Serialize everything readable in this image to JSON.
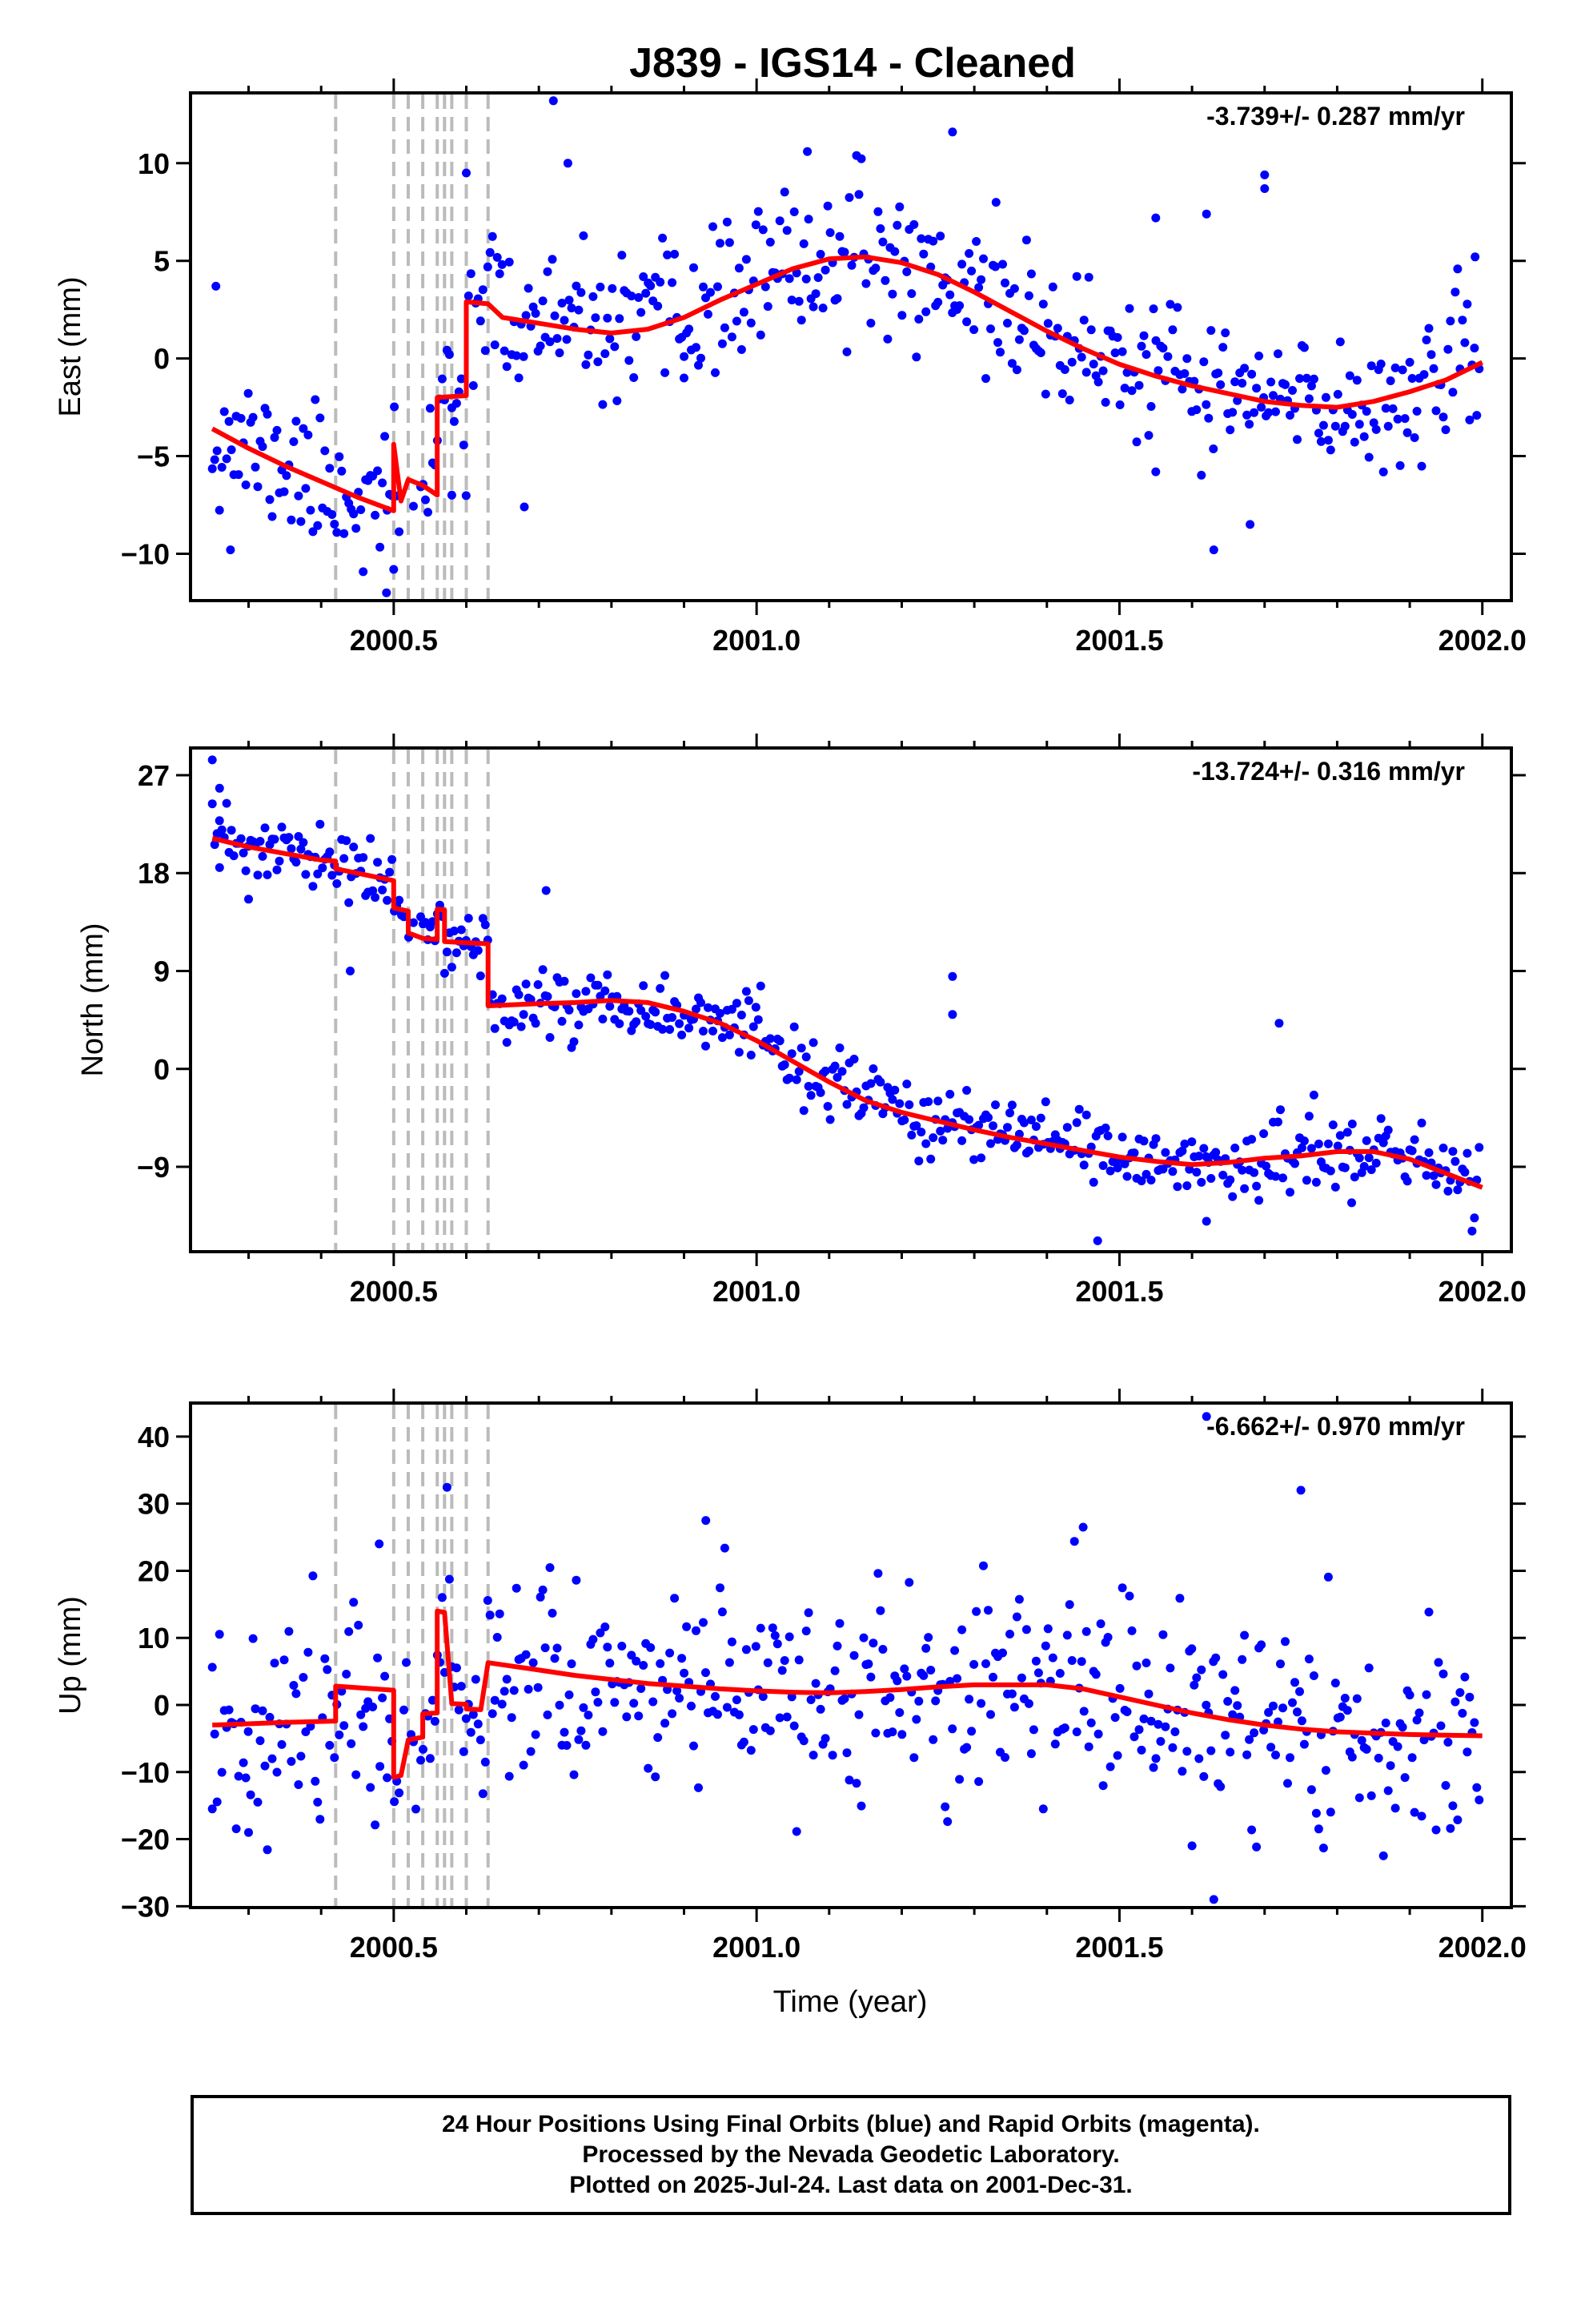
{
  "chart_data": {
    "type": "scatter",
    "title": "J839  - IGS14 - Cleaned",
    "xlabel": "Time (year)",
    "xlim": [
      2000.22,
      2002.04
    ],
    "xticks": [
      2000.5,
      2001.0,
      2001.5,
      2002.0
    ],
    "xtick_labels": [
      "2000.5",
      "2001.0",
      "2001.5",
      "2002.0"
    ],
    "breaks": [
      2000.42,
      2000.5,
      2000.52,
      2000.54,
      2000.56,
      2000.57,
      2000.58,
      2000.6,
      2000.63
    ],
    "colors": {
      "points": "#0000ff",
      "model": "#ff0000",
      "breaks": "#bbbbbb",
      "rapid": "#ff00ff"
    },
    "panels": [
      {
        "name": "east",
        "ylabel": "East (mm)",
        "rate": "-3.739+/- 0.287 mm/yr",
        "ylim": [
          -12.4,
          13.6
        ],
        "yticks": [
          10,
          5,
          0,
          -5,
          -10
        ],
        "ytick_labels": [
          "10",
          "5",
          "0",
          "−5",
          "−10"
        ],
        "scatter_sd": 1.8,
        "scatter_seed": 11,
        "model": [
          [
            2000.25,
            -3.6
          ],
          [
            2000.3,
            -4.6
          ],
          [
            2000.35,
            -5.5
          ],
          [
            2000.4,
            -6.3
          ],
          [
            2000.45,
            -7.1
          ],
          [
            2000.5,
            -7.8
          ],
          [
            2000.5,
            -4.4
          ],
          [
            2000.51,
            -7.3
          ],
          [
            2000.52,
            -6.2
          ],
          [
            2000.54,
            -6.5
          ],
          [
            2000.56,
            -7.0
          ],
          [
            2000.56,
            -2.0
          ],
          [
            2000.6,
            -1.9
          ],
          [
            2000.6,
            2.9
          ],
          [
            2000.63,
            2.8
          ],
          [
            2000.65,
            2.1
          ],
          [
            2000.7,
            1.8
          ],
          [
            2000.75,
            1.5
          ],
          [
            2000.8,
            1.3
          ],
          [
            2000.85,
            1.5
          ],
          [
            2000.9,
            2.1
          ],
          [
            2000.95,
            3.0
          ],
          [
            2001.0,
            3.8
          ],
          [
            2001.05,
            4.6
          ],
          [
            2001.1,
            5.1
          ],
          [
            2001.15,
            5.2
          ],
          [
            2001.2,
            4.9
          ],
          [
            2001.25,
            4.3
          ],
          [
            2001.3,
            3.4
          ],
          [
            2001.35,
            2.4
          ],
          [
            2001.4,
            1.4
          ],
          [
            2001.45,
            0.5
          ],
          [
            2001.5,
            -0.3
          ],
          [
            2001.55,
            -0.9
          ],
          [
            2001.6,
            -1.4
          ],
          [
            2001.65,
            -1.8
          ],
          [
            2001.7,
            -2.2
          ],
          [
            2001.75,
            -2.4
          ],
          [
            2001.8,
            -2.5
          ],
          [
            2001.85,
            -2.2
          ],
          [
            2001.9,
            -1.7
          ],
          [
            2001.95,
            -1.1
          ],
          [
            2002.0,
            -0.2
          ]
        ],
        "outliers": [
          [
            2000.255,
            3.7
          ],
          [
            2000.275,
            -9.8
          ],
          [
            2000.72,
            13.2
          ],
          [
            2000.74,
            10
          ],
          [
            2000.9,
            -1
          ],
          [
            2001.07,
            10.6
          ],
          [
            2001.27,
            11.6
          ],
          [
            2001.33,
            8
          ],
          [
            2001.62,
            7.4
          ],
          [
            2001.63,
            -9.8
          ],
          [
            2001.68,
            -8.5
          ],
          [
            2001.7,
            9.4
          ],
          [
            2001.7,
            8.7
          ],
          [
            2001.99,
            5.2
          ],
          [
            2000.49,
            -12
          ],
          [
            2000.5,
            -10.8
          ],
          [
            2000.6,
            9.5
          ],
          [
            2000.58,
            -7
          ],
          [
            2000.68,
            -7.6
          ],
          [
            2001.55,
            7.2
          ],
          [
            2001.55,
            -5.8
          ]
        ]
      },
      {
        "name": "north",
        "ylabel": "North (mm)",
        "rate": "-13.724+/- 0.316 mm/yr",
        "ylim": [
          -16.8,
          29.5
        ],
        "yticks": [
          27,
          18,
          9,
          0,
          -9
        ],
        "ytick_labels": [
          "27",
          "18",
          "9",
          "0",
          "−9"
        ],
        "scatter_sd": 1.6,
        "scatter_seed": 23,
        "model": [
          [
            2000.25,
            21.2
          ],
          [
            2000.3,
            20.4
          ],
          [
            2000.35,
            19.8
          ],
          [
            2000.4,
            19.2
          ],
          [
            2000.42,
            19.1
          ],
          [
            2000.42,
            18.4
          ],
          [
            2000.5,
            17.3
          ],
          [
            2000.5,
            14.8
          ],
          [
            2000.52,
            14.5
          ],
          [
            2000.52,
            12.5
          ],
          [
            2000.54,
            12.0
          ],
          [
            2000.56,
            11.9
          ],
          [
            2000.56,
            14.7
          ],
          [
            2000.57,
            14.6
          ],
          [
            2000.57,
            11.7
          ],
          [
            2000.6,
            11.6
          ],
          [
            2000.63,
            11.5
          ],
          [
            2000.63,
            5.8
          ],
          [
            2000.7,
            6.0
          ],
          [
            2000.75,
            6.1
          ],
          [
            2000.8,
            6.3
          ],
          [
            2000.85,
            6.1
          ],
          [
            2000.9,
            5.3
          ],
          [
            2000.95,
            4.2
          ],
          [
            2001.0,
            2.6
          ],
          [
            2001.05,
            0.7
          ],
          [
            2001.1,
            -1.2
          ],
          [
            2001.15,
            -2.9
          ],
          [
            2001.2,
            -4.0
          ],
          [
            2001.25,
            -4.8
          ],
          [
            2001.3,
            -5.6
          ],
          [
            2001.35,
            -6.3
          ],
          [
            2001.4,
            -6.9
          ],
          [
            2001.45,
            -7.5
          ],
          [
            2001.5,
            -8.1
          ],
          [
            2001.55,
            -8.5
          ],
          [
            2001.6,
            -8.8
          ],
          [
            2001.65,
            -8.6
          ],
          [
            2001.7,
            -8.2
          ],
          [
            2001.75,
            -8.0
          ],
          [
            2001.8,
            -7.6
          ],
          [
            2001.85,
            -7.6
          ],
          [
            2001.9,
            -8.3
          ],
          [
            2001.95,
            -9.6
          ],
          [
            2002.0,
            -10.9
          ]
        ],
        "outliers": [
          [
            2000.25,
            28.4
          ],
          [
            2000.26,
            25.8
          ],
          [
            2000.44,
            9
          ],
          [
            2000.71,
            16.4
          ],
          [
            2001.27,
            8.5
          ],
          [
            2001.27,
            5
          ],
          [
            2001.47,
            -15.8
          ],
          [
            2001.62,
            -14
          ],
          [
            2001.72,
            4.2
          ],
          [
            2001.82,
            -12.3
          ],
          [
            2000.3,
            15.6
          ],
          [
            2000.26,
            18.5
          ]
        ]
      },
      {
        "name": "up",
        "ylabel": "Up (mm)",
        "rate": "-6.662+/- 0.970 mm/yr",
        "ylim": [
          -30.2,
          45.0
        ],
        "yticks": [
          40,
          30,
          20,
          10,
          0,
          -10,
          -20,
          -30
        ],
        "ytick_labels": [
          "40",
          "30",
          "20",
          "10",
          "0",
          "−10",
          "−20",
          "−30"
        ],
        "scatter_sd": 7.5,
        "scatter_seed": 37,
        "model": [
          [
            2000.25,
            -3.0
          ],
          [
            2000.3,
            -2.8
          ],
          [
            2000.35,
            -2.6
          ],
          [
            2000.42,
            -2.4
          ],
          [
            2000.42,
            2.8
          ],
          [
            2000.5,
            2.2
          ],
          [
            2000.5,
            -10.8
          ],
          [
            2000.51,
            -10.5
          ],
          [
            2000.52,
            -5.2
          ],
          [
            2000.54,
            -4.8
          ],
          [
            2000.54,
            -1.3
          ],
          [
            2000.56,
            -1.2
          ],
          [
            2000.56,
            14.0
          ],
          [
            2000.57,
            13.8
          ],
          [
            2000.58,
            0.2
          ],
          [
            2000.6,
            0.1
          ],
          [
            2000.6,
            -0.6
          ],
          [
            2000.62,
            -0.7
          ],
          [
            2000.63,
            6.3
          ],
          [
            2000.7,
            5.2
          ],
          [
            2000.75,
            4.4
          ],
          [
            2000.8,
            3.8
          ],
          [
            2000.85,
            3.2
          ],
          [
            2000.9,
            2.8
          ],
          [
            2000.95,
            2.4
          ],
          [
            2001.0,
            2.1
          ],
          [
            2001.05,
            1.9
          ],
          [
            2001.1,
            1.8
          ],
          [
            2001.15,
            2.0
          ],
          [
            2001.2,
            2.3
          ],
          [
            2001.25,
            2.7
          ],
          [
            2001.3,
            3.0
          ],
          [
            2001.35,
            3.0
          ],
          [
            2001.4,
            3.0
          ],
          [
            2001.45,
            2.4
          ],
          [
            2001.5,
            1.2
          ],
          [
            2001.55,
            0.0
          ],
          [
            2001.6,
            -1.2
          ],
          [
            2001.65,
            -2.2
          ],
          [
            2001.7,
            -3.0
          ],
          [
            2001.75,
            -3.6
          ],
          [
            2001.8,
            -4.0
          ],
          [
            2001.85,
            -4.2
          ],
          [
            2001.9,
            -4.4
          ],
          [
            2001.95,
            -4.5
          ],
          [
            2002.0,
            -4.6
          ]
        ],
        "outliers": [
          [
            2001.62,
            43
          ],
          [
            2001.75,
            32
          ],
          [
            2001.63,
            -29
          ],
          [
            2000.93,
            27.5
          ],
          [
            2001.45,
            26.5
          ],
          [
            2000.25,
            -15.5
          ],
          [
            2000.3,
            -19
          ],
          [
            2000.48,
            24
          ],
          [
            2001.6,
            -21
          ]
        ]
      }
    ]
  },
  "footer": {
    "line1": "24 Hour Positions Using Final Orbits (blue) and Rapid Orbits (magenta).",
    "line2": "Processed by the Nevada Geodetic Laboratory.",
    "line3": "Plotted on 2025-Jul-24. Last data on 2001-Dec-31."
  }
}
